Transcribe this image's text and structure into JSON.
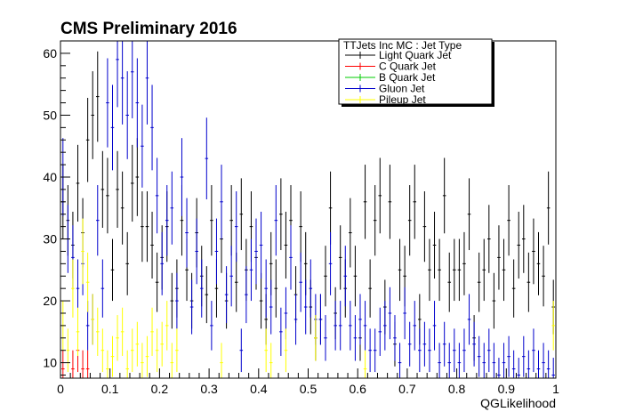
{
  "chart_data": {
    "type": "scatter",
    "title": "CMS Preliminary 2016",
    "xlabel": "QGLikelihood",
    "ylabel": "",
    "xlim": [
      0,
      1
    ],
    "ylim": [
      7.5,
      62
    ],
    "x_ticks": [
      "0",
      "0.1",
      "0.2",
      "0.3",
      "0.4",
      "0.5",
      "0.6",
      "0.7",
      "0.8",
      "0.9",
      "1"
    ],
    "y_ticks": [
      "10",
      "20",
      "30",
      "40",
      "50",
      "60"
    ],
    "grid": false,
    "legend": {
      "placement": "top-right",
      "header": "TTJets Inc MC : Jet Type",
      "entries": [
        "Light Quark Jet",
        "C Quark Jet",
        "B Quark Jet",
        "Gluon Jet",
        "Pileup Jet"
      ]
    },
    "series": [
      {
        "name": "Light Quark Jet",
        "color": "#000000",
        "bin_width": 0.01,
        "x": [
          0.005,
          0.015,
          0.025,
          0.035,
          0.045,
          0.055,
          0.065,
          0.075,
          0.085,
          0.095,
          0.105,
          0.115,
          0.125,
          0.135,
          0.145,
          0.155,
          0.165,
          0.175,
          0.185,
          0.195,
          0.205,
          0.215,
          0.225,
          0.235,
          0.245,
          0.255,
          0.265,
          0.275,
          0.285,
          0.295,
          0.305,
          0.315,
          0.325,
          0.335,
          0.345,
          0.355,
          0.365,
          0.375,
          0.385,
          0.395,
          0.405,
          0.415,
          0.425,
          0.435,
          0.445,
          0.455,
          0.465,
          0.475,
          0.485,
          0.495,
          0.505,
          0.515,
          0.525,
          0.535,
          0.545,
          0.555,
          0.565,
          0.575,
          0.585,
          0.595,
          0.605,
          0.615,
          0.625,
          0.635,
          0.645,
          0.655,
          0.665,
          0.675,
          0.685,
          0.695,
          0.705,
          0.715,
          0.725,
          0.735,
          0.745,
          0.755,
          0.765,
          0.775,
          0.785,
          0.795,
          0.805,
          0.815,
          0.825,
          0.835,
          0.845,
          0.855,
          0.865,
          0.875,
          0.885,
          0.895,
          0.905,
          0.915,
          0.925,
          0.935,
          0.945,
          0.955,
          0.965,
          0.975,
          0.985,
          0.995
        ],
        "y": [
          36,
          33,
          29,
          39,
          31,
          46,
          50,
          53,
          38,
          37,
          25,
          38,
          35,
          26,
          39,
          40,
          32,
          32,
          29,
          23,
          27,
          32,
          20,
          22,
          33,
          25,
          20,
          31,
          24,
          21,
          33,
          22,
          30,
          20,
          33,
          23,
          34,
          25,
          32,
          27,
          20,
          17,
          26,
          22,
          34,
          29,
          33,
          21,
          32,
          26,
          19,
          14,
          17,
          24,
          35,
          18,
          27,
          22,
          31,
          24,
          14,
          36,
          22,
          33,
          37,
          19,
          36,
          13,
          25,
          24,
          33,
          36,
          17,
          32,
          25,
          29,
          25,
          37,
          23,
          25,
          25,
          26,
          34,
          14,
          23,
          25,
          30,
          20,
          27,
          25,
          33,
          22,
          29,
          30,
          23,
          28,
          26,
          24,
          35,
          19
        ],
        "err": [
          6,
          5.7,
          5.4,
          6.2,
          5.6,
          6.8,
          7.1,
          7.3,
          6.2,
          6.1,
          5,
          6.2,
          5.9,
          5.1,
          6.2,
          6.3,
          5.7,
          5.7,
          5.4,
          4.8,
          5.2,
          5.7,
          4.5,
          4.7,
          5.7,
          5,
          4.5,
          5.6,
          4.9,
          4.6,
          5.7,
          4.7,
          5.5,
          4.5,
          5.7,
          4.8,
          5.8,
          5,
          5.7,
          5.2,
          4.5,
          4.1,
          5.1,
          4.7,
          5.8,
          5.4,
          5.7,
          4.6,
          5.7,
          5.1,
          4.4,
          3.7,
          4.1,
          4.9,
          5.9,
          4.2,
          5.2,
          4.7,
          5.6,
          4.9,
          3.7,
          6,
          4.7,
          5.7,
          6.1,
          4.4,
          6,
          3.6,
          5,
          4.9,
          5.7,
          6,
          4.1,
          5.7,
          5,
          5.4,
          5,
          6.1,
          4.8,
          5,
          5,
          5.1,
          5.8,
          3.7,
          4.8,
          5,
          5.5,
          4.5,
          5.2,
          5,
          5.7,
          4.7,
          5.4,
          5.5,
          4.8,
          5.3,
          5.1,
          4.9,
          5.9,
          4.4
        ]
      },
      {
        "name": "C Quark Jet",
        "color": "#ff0000",
        "bin_width": 0.01,
        "x": [
          0.005,
          0.025,
          0.035,
          0.045,
          0.055
        ],
        "y": [
          9,
          9,
          12,
          9,
          9
        ],
        "err": [
          3,
          3,
          3.5,
          3,
          3
        ]
      },
      {
        "name": "B Quark Jet",
        "color": "#00cc00",
        "bin_width": 0.01,
        "x": [],
        "y": [],
        "err": []
      },
      {
        "name": "Gluon Jet",
        "color": "#0000cc",
        "bin_width": 0.01,
        "x": [
          0.005,
          0.015,
          0.025,
          0.035,
          0.045,
          0.055,
          0.065,
          0.075,
          0.085,
          0.095,
          0.105,
          0.115,
          0.125,
          0.135,
          0.145,
          0.155,
          0.165,
          0.175,
          0.185,
          0.195,
          0.205,
          0.215,
          0.225,
          0.235,
          0.245,
          0.255,
          0.265,
          0.275,
          0.285,
          0.295,
          0.305,
          0.315,
          0.325,
          0.335,
          0.345,
          0.355,
          0.365,
          0.375,
          0.385,
          0.395,
          0.405,
          0.415,
          0.425,
          0.435,
          0.445,
          0.455,
          0.465,
          0.475,
          0.485,
          0.495,
          0.505,
          0.515,
          0.525,
          0.535,
          0.545,
          0.555,
          0.565,
          0.575,
          0.585,
          0.595,
          0.605,
          0.615,
          0.625,
          0.635,
          0.645,
          0.655,
          0.665,
          0.675,
          0.685,
          0.695,
          0.705,
          0.715,
          0.725,
          0.735,
          0.745,
          0.755,
          0.765,
          0.775,
          0.785,
          0.795,
          0.805,
          0.815,
          0.825,
          0.835,
          0.845,
          0.855,
          0.865,
          0.875,
          0.885,
          0.895,
          0.905,
          0.915,
          0.925,
          0.935,
          0.945,
          0.955,
          0.965,
          0.975,
          0.985,
          0.995
        ],
        "y": [
          40,
          30,
          27,
          22,
          26,
          16,
          17,
          33,
          22,
          52,
          48,
          59,
          56,
          50,
          57,
          52,
          45,
          56,
          48,
          37,
          26,
          33,
          35,
          20,
          40,
          31,
          19,
          28,
          22,
          43,
          16,
          28,
          36,
          21,
          24,
          32,
          12,
          21,
          25,
          28,
          29,
          22,
          19,
          33,
          15,
          18,
          27,
          17,
          23,
          19,
          22,
          17,
          17,
          14,
          26,
          16,
          16,
          24,
          16,
          14,
          17,
          16,
          12,
          12,
          15,
          16,
          18,
          14,
          10,
          18,
          13,
          16,
          12,
          13,
          12,
          16,
          10,
          13,
          10,
          12,
          10,
          12,
          17,
          13,
          11,
          10,
          12,
          10,
          8,
          10,
          11,
          9,
          8,
          11,
          9,
          12,
          9,
          10,
          9,
          8
        ],
        "err": [
          6.3,
          5.5,
          5.2,
          4.7,
          5.1,
          4,
          4.1,
          5.7,
          4.7,
          7.2,
          6.9,
          7.7,
          7.5,
          7.1,
          7.5,
          7.2,
          6.7,
          7.5,
          6.9,
          6.1,
          5.1,
          5.7,
          5.9,
          4.5,
          6.3,
          5.6,
          4.4,
          5.3,
          4.7,
          6.6,
          4,
          5.3,
          6,
          4.6,
          4.9,
          5.7,
          3.5,
          4.6,
          5,
          5.3,
          5.4,
          4.7,
          4.4,
          5.7,
          3.9,
          4.2,
          5.2,
          4.1,
          4.8,
          4.4,
          4.7,
          4.1,
          4.1,
          3.7,
          5.1,
          4,
          4,
          4.9,
          4,
          3.7,
          4.1,
          4,
          3.5,
          3.5,
          3.9,
          4,
          4.2,
          3.7,
          3.2,
          4.2,
          3.6,
          4,
          3.5,
          3.6,
          3.5,
          4,
          3.2,
          3.6,
          3.2,
          3.5,
          3.2,
          3.5,
          4.1,
          3.6,
          3.3,
          3.2,
          3.5,
          3.2,
          2.8,
          3.2,
          3.3,
          3,
          2.8,
          3.3,
          3,
          3.5,
          3,
          3.2,
          3,
          2.8
        ]
      },
      {
        "name": "Pileup Jet",
        "color": "#ffff00",
        "bin_width": 0.01,
        "x": [
          0.005,
          0.015,
          0.025,
          0.035,
          0.045,
          0.055,
          0.065,
          0.075,
          0.085,
          0.095,
          0.105,
          0.115,
          0.125,
          0.135,
          0.145,
          0.155,
          0.165,
          0.175,
          0.185,
          0.195,
          0.205,
          0.215,
          0.225,
          0.235,
          0.325,
          0.415,
          0.425,
          0.455,
          0.515,
          0.615,
          0.995
        ],
        "y": [
          16,
          12,
          22,
          15,
          28,
          23,
          17,
          15,
          12,
          9,
          11,
          14,
          15,
          9,
          12,
          13,
          10,
          11,
          15,
          12,
          13,
          16,
          10,
          12,
          10,
          12,
          10,
          12,
          14,
          9,
          16
        ],
        "err": [
          4,
          3.5,
          4.7,
          3.9,
          5.3,
          4.8,
          4.1,
          3.9,
          3.5,
          3,
          3.3,
          3.7,
          3.9,
          3,
          3.5,
          3.6,
          3.2,
          3.3,
          3.9,
          3.5,
          3.6,
          4,
          3.2,
          3.5,
          3.2,
          3.5,
          3.2,
          3.5,
          3.7,
          3,
          4
        ]
      }
    ]
  }
}
